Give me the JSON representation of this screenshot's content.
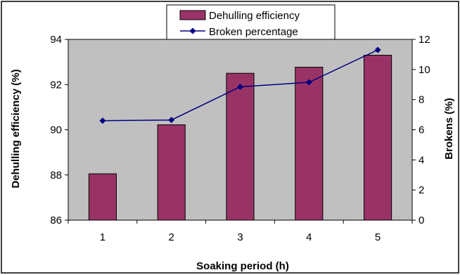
{
  "chart_data": {
    "type": "bar",
    "categories": [
      "1",
      "2",
      "3",
      "4",
      "5"
    ],
    "xlabel": "Soaking period (h)",
    "ylabel": "Dehulling efficiency (%)",
    "ylabel_right": "Brokens (%)",
    "ylim": [
      86,
      94
    ],
    "yticks": [
      "86",
      "88",
      "90",
      "92",
      "94"
    ],
    "ylim_right": [
      0,
      12
    ],
    "yticks_right": [
      "0",
      "2",
      "4",
      "6",
      "8",
      "10",
      "12"
    ],
    "grid": false,
    "legend_position": "top",
    "series": [
      {
        "name": "Dehulling efficiency",
        "type": "bar",
        "axis": "left",
        "color": "#993366",
        "values": [
          88.05,
          90.22,
          92.5,
          92.77,
          93.3
        ]
      },
      {
        "name": "Broken percentage",
        "type": "line",
        "axis": "right",
        "color": "#000080",
        "marker": "diamond",
        "values": [
          6.6,
          6.65,
          8.85,
          9.15,
          11.3
        ]
      }
    ]
  },
  "colors": {
    "plot_background": "#C0C0C0",
    "bar_fill": "#993366",
    "line_color": "#000080"
  }
}
